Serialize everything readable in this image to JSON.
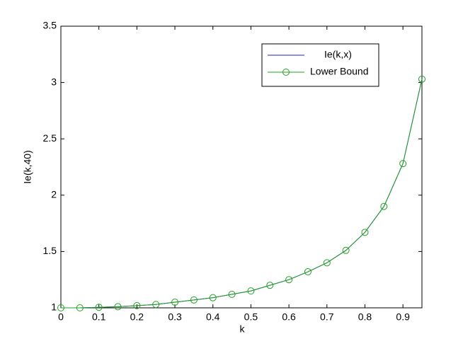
{
  "chart_data": {
    "type": "line",
    "x_label": "k",
    "y_label": "Ie(k,40)",
    "x": [
      0,
      0.05,
      0.1,
      0.15,
      0.2,
      0.25,
      0.3,
      0.35,
      0.4,
      0.45,
      0.5,
      0.55,
      0.6,
      0.65,
      0.7,
      0.75,
      0.8,
      0.85,
      0.9,
      0.95
    ],
    "series": [
      {
        "name": "Ie(k,x)",
        "color": "#1f1fbf",
        "marker": "none",
        "values": [
          1.0,
          1.0,
          1.005,
          1.01,
          1.02,
          1.03,
          1.05,
          1.07,
          1.09,
          1.12,
          1.15,
          1.2,
          1.25,
          1.32,
          1.4,
          1.51,
          1.67,
          1.9,
          2.28,
          3.03
        ]
      },
      {
        "name": "Lower Bound",
        "color": "#22a022",
        "marker": "circle",
        "values": [
          1.0,
          1.0,
          1.005,
          1.01,
          1.02,
          1.03,
          1.05,
          1.07,
          1.09,
          1.12,
          1.15,
          1.2,
          1.25,
          1.32,
          1.4,
          1.51,
          1.67,
          1.9,
          2.28,
          3.03
        ]
      }
    ],
    "xlim": [
      0,
      0.95
    ],
    "ylim": [
      1,
      3.5
    ],
    "xticks": [
      0,
      0.1,
      0.2,
      0.3,
      0.4,
      0.5,
      0.6,
      0.7,
      0.8,
      0.9
    ],
    "yticks": [
      1,
      1.5,
      2,
      2.5,
      3,
      3.5
    ],
    "legend": "upper-right",
    "grid": false
  }
}
